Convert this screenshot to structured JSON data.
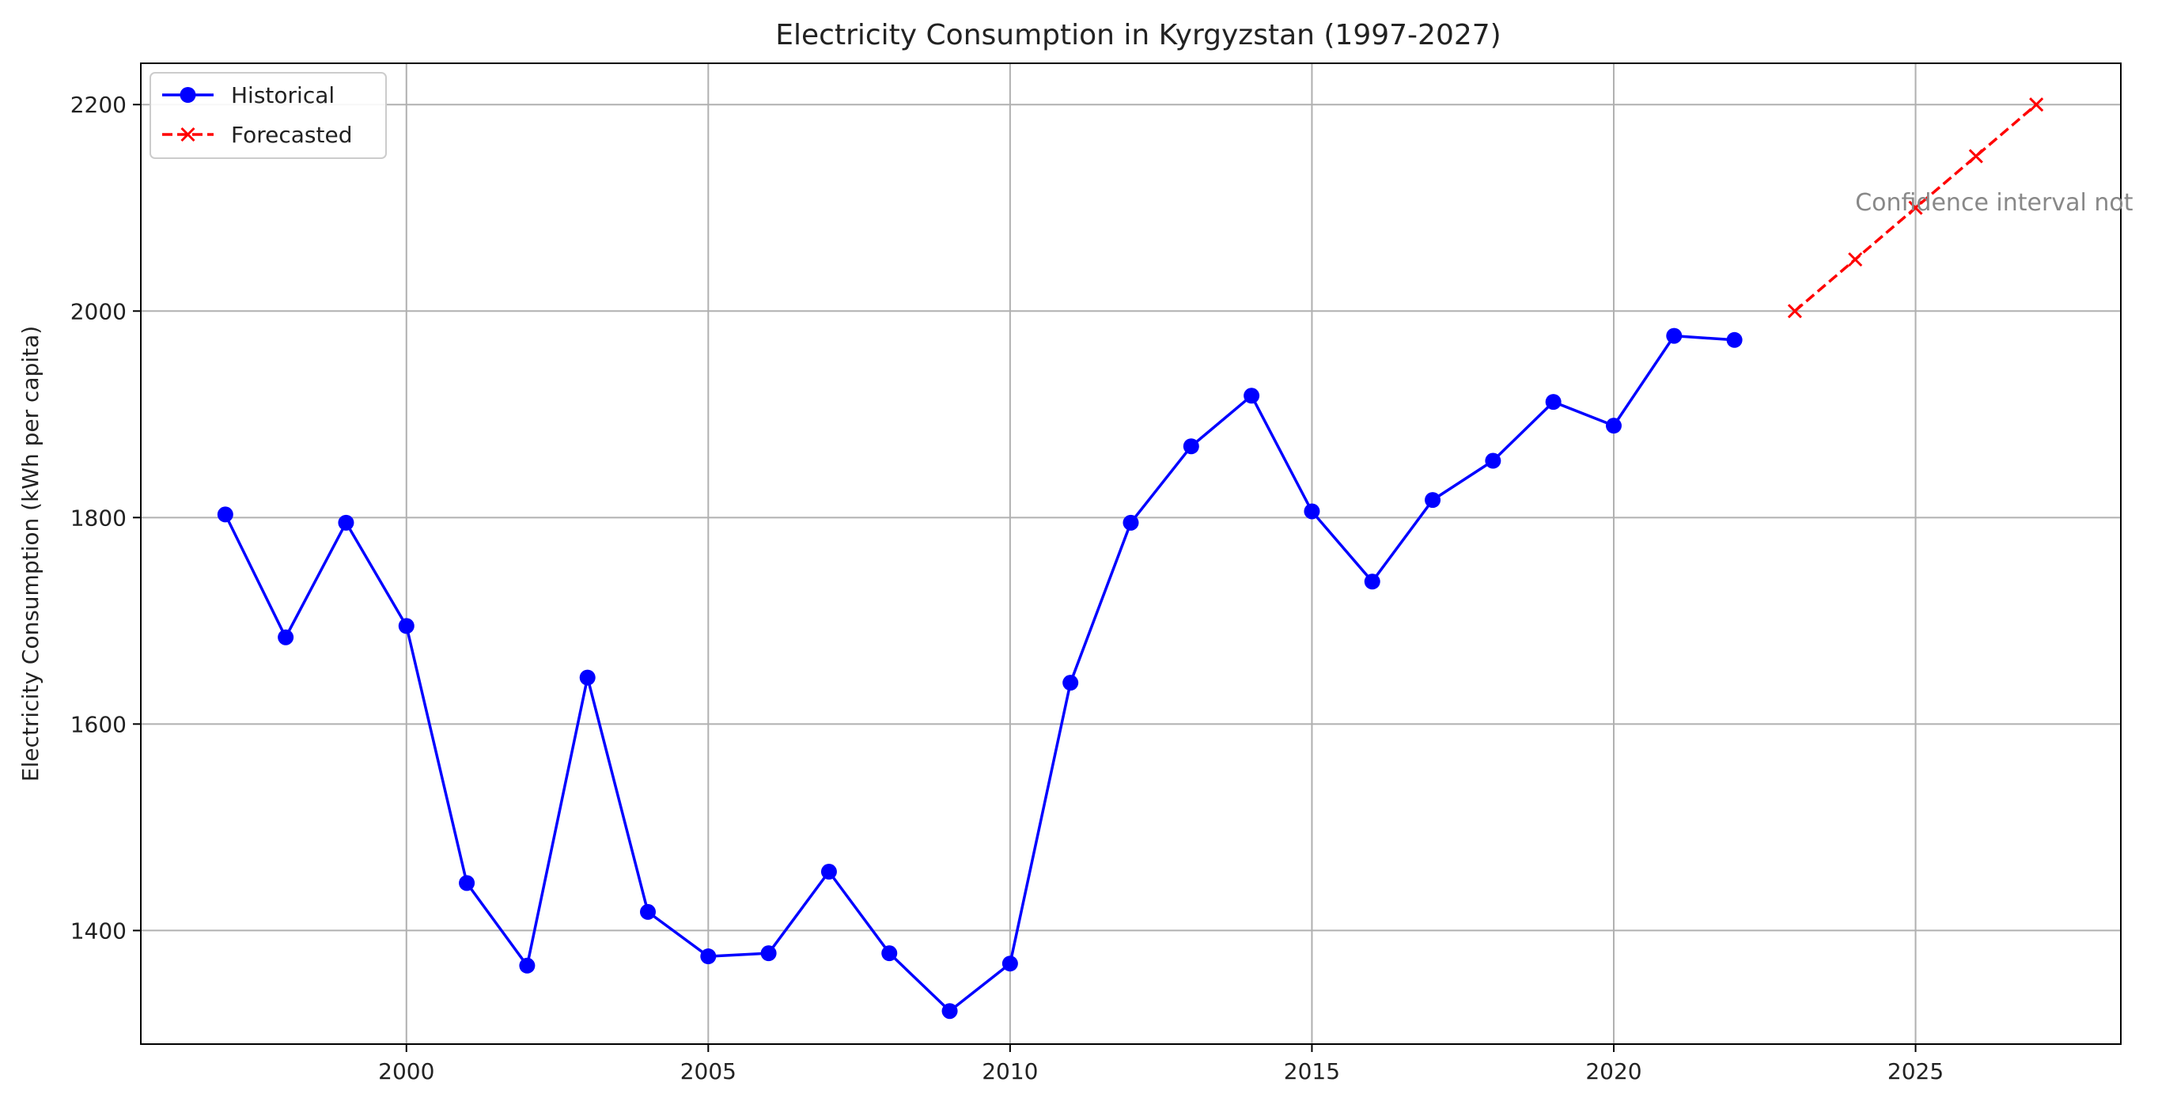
{
  "chart_data": {
    "type": "line",
    "title": "Electricity Consumption in Kyrgyzstan (1997-2027)",
    "xlabel": "",
    "ylabel": "Electricity Consumption (kWh per capita)",
    "xlim": [
      1995.6,
      2028.4
    ],
    "ylim": [
      1290,
      2240
    ],
    "xticks": [
      2000,
      2005,
      2010,
      2015,
      2020,
      2025
    ],
    "yticks": [
      1400,
      1600,
      1800,
      2000,
      2200
    ],
    "grid": true,
    "legend_position": "top-left",
    "series": [
      {
        "name": "Historical",
        "color": "#0000ff",
        "style": "solid",
        "marker": "circle",
        "x": [
          1997,
          1998,
          1999,
          2000,
          2001,
          2002,
          2003,
          2004,
          2005,
          2006,
          2007,
          2008,
          2009,
          2010,
          2011,
          2012,
          2013,
          2014,
          2015,
          2016,
          2017,
          2018,
          2019,
          2020,
          2021,
          2022
        ],
        "values": [
          1803,
          1684,
          1795,
          1695,
          1446,
          1366,
          1645,
          1418,
          1375,
          1378,
          1457,
          1378,
          1322,
          1368,
          1640,
          1795,
          1869,
          1918,
          1806,
          1738,
          1817,
          1855,
          1912,
          1889,
          1976,
          1972
        ]
      },
      {
        "name": "Forecasted",
        "color": "#ff0000",
        "style": "dashed",
        "marker": "x",
        "x": [
          2023,
          2024,
          2025,
          2026,
          2027
        ],
        "values": [
          2000,
          2050,
          2100,
          2150,
          2200
        ]
      }
    ],
    "annotations": [
      {
        "text": "Confidence interval not",
        "x": 2024,
        "y": 2105,
        "color": "#888888"
      }
    ]
  }
}
